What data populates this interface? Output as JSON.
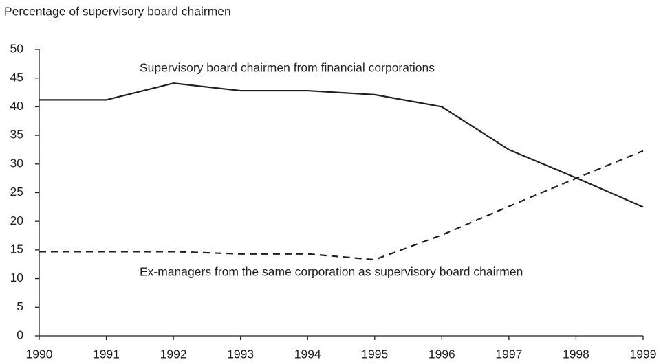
{
  "chart_data": {
    "type": "line",
    "y_axis_label": "Percentage of supervisory board chairmen",
    "x": [
      1990,
      1991,
      1992,
      1993,
      1994,
      1995,
      1996,
      1997,
      1998,
      1999
    ],
    "xlim": [
      1990,
      1999
    ],
    "xticks": [
      1990,
      1991,
      1992,
      1993,
      1994,
      1995,
      1996,
      1997,
      1998,
      1999
    ],
    "ylim": [
      0,
      50
    ],
    "yticks": [
      0,
      5,
      10,
      15,
      20,
      25,
      30,
      35,
      40,
      45,
      50
    ],
    "grid": false,
    "series": [
      {
        "name": "Supervisory board chairmen from financial corporations",
        "color": "#231f20",
        "linestyle": "solid",
        "values": [
          41.2,
          41.2,
          44.1,
          42.8,
          42.8,
          42.1,
          40.0,
          32.5,
          27.6,
          22.5
        ]
      },
      {
        "name": "Ex-managers from the same corporation as supervisory board chairmen",
        "color": "#231f20",
        "linestyle": "dashed",
        "values": [
          14.7,
          14.7,
          14.7,
          14.3,
          14.3,
          13.3,
          17.6,
          22.6,
          27.5,
          32.3
        ]
      }
    ]
  }
}
